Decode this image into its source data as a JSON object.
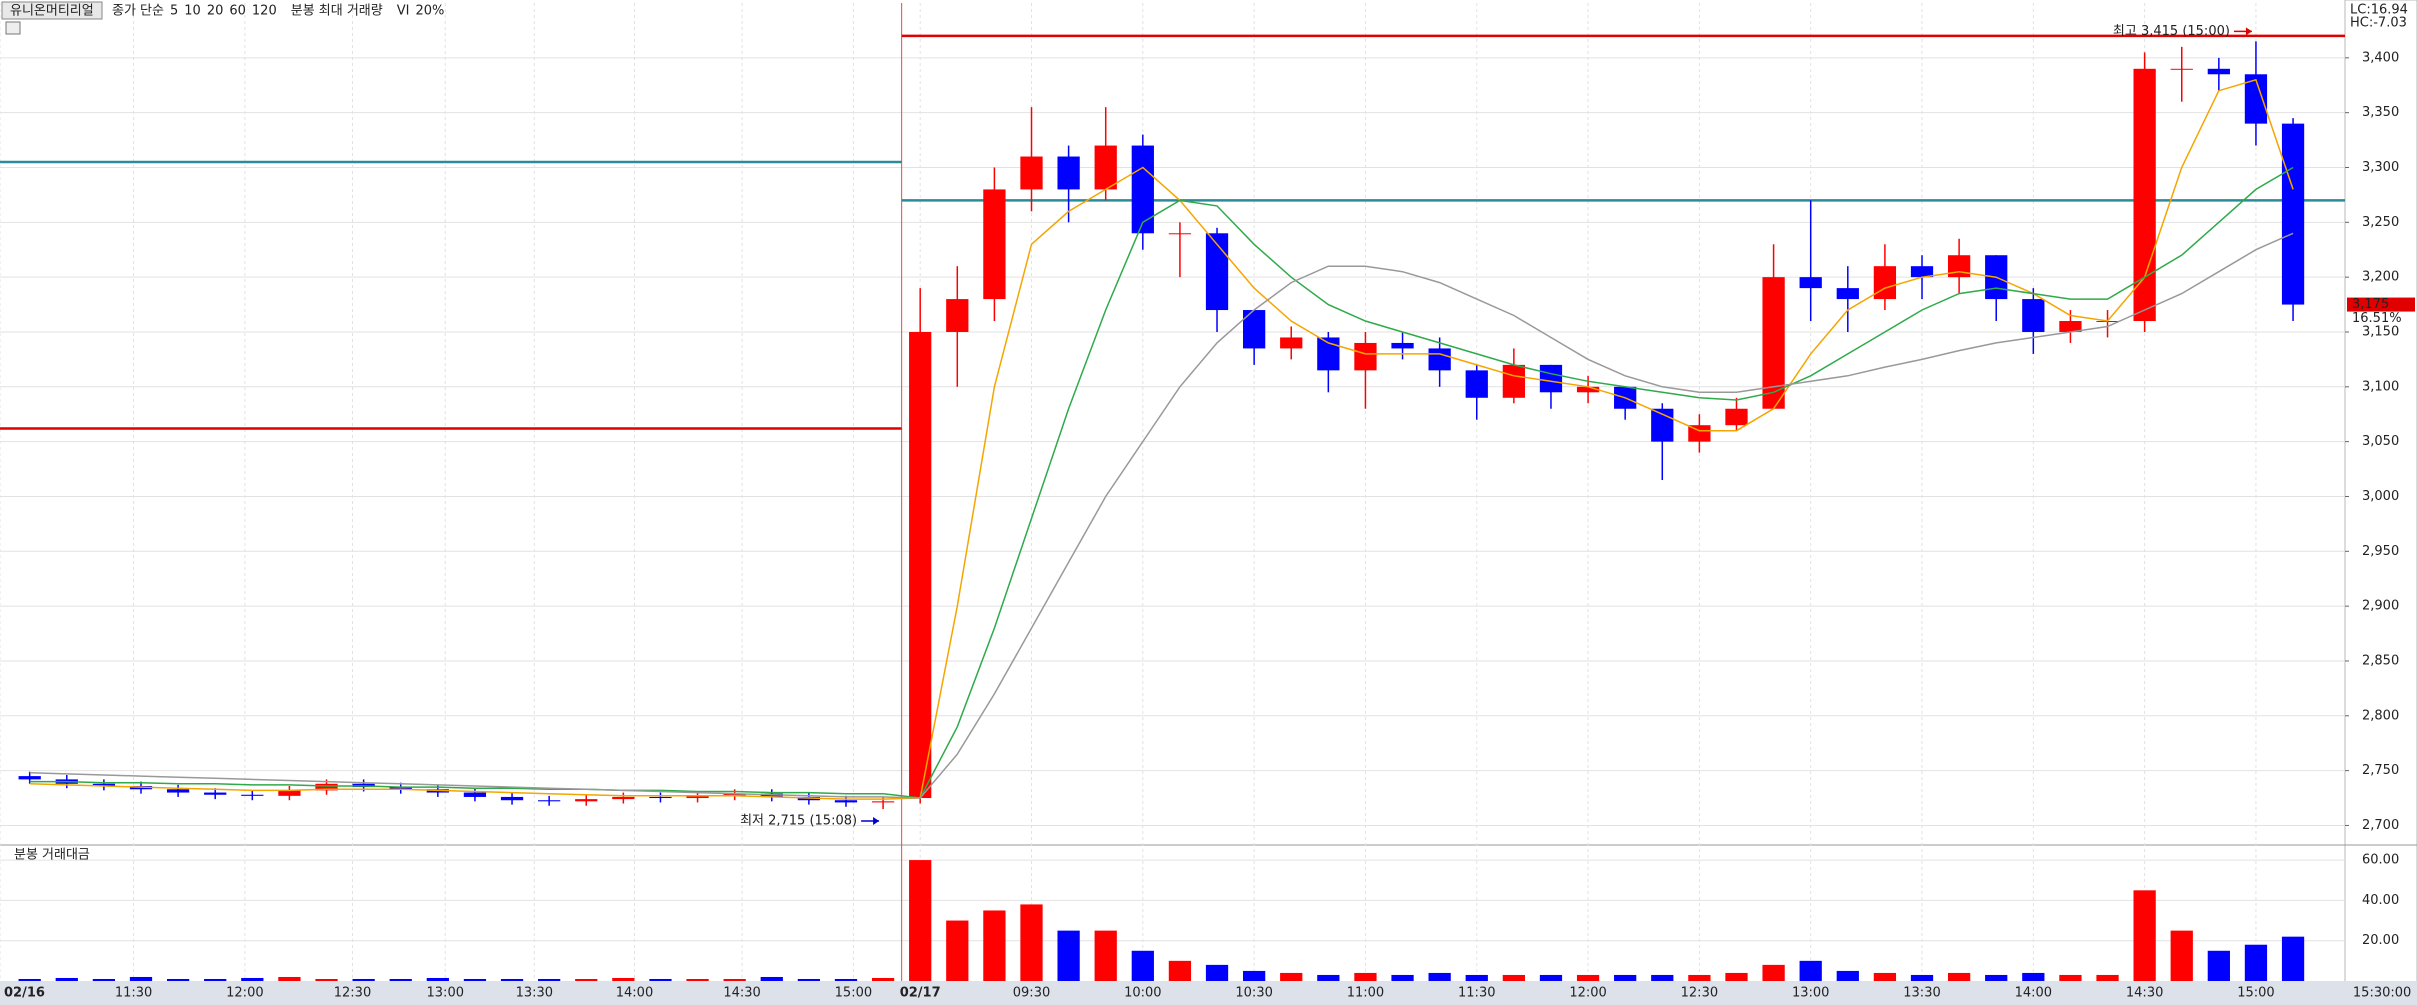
{
  "chart_data": {
    "type": "candlestick",
    "title": "유니온머티리얼",
    "ma_label": "종가 단순",
    "ma_legend": [
      {
        "name": "5",
        "color": "#d0208a"
      },
      {
        "name": "10",
        "color": "#1a2cf0"
      }
    ],
    "volume_header": "분봉 최대 거래량",
    "vi_label": "VI",
    "vi_value": "20%",
    "volume_title": "분봉 거래대금",
    "lc": "LC:16.94",
    "hc": "HC:-7.03",
    "up_color": "#ff0000",
    "down_color": "#0000ff",
    "x": [
      2,
      3,
      4,
      5,
      6,
      7,
      8,
      9,
      10,
      11,
      12,
      13,
      14,
      15,
      16,
      17,
      18,
      19,
      20,
      21,
      22,
      23,
      24,
      25,
      26,
      27,
      28,
      29,
      30,
      31,
      32,
      33,
      34,
      35,
      36,
      37,
      38,
      39,
      40,
      41,
      42,
      43,
      44,
      45,
      46,
      47,
      48,
      49,
      50,
      51,
      52,
      53,
      54,
      55,
      56,
      57,
      58,
      59,
      60,
      61,
      62,
      63
    ],
    "day": [
      1,
      1,
      1,
      1,
      1,
      1,
      1,
      1,
      1,
      1,
      1,
      1,
      1,
      1,
      1,
      1,
      1,
      1,
      1,
      1,
      1,
      1,
      1,
      1,
      2,
      2,
      2,
      2,
      2,
      2,
      2,
      2,
      2,
      2,
      2,
      2,
      2,
      2,
      2,
      2,
      2,
      2,
      2,
      2,
      2,
      2,
      2,
      2,
      2,
      2,
      2,
      2,
      2,
      2,
      2,
      2,
      2,
      2,
      2,
      2,
      2,
      2
    ],
    "open": [
      2745,
      2742,
      2738,
      2736,
      2733,
      2730,
      2728,
      2727,
      2732,
      2738,
      2735,
      2733,
      2730,
      2726,
      2723,
      2722,
      2724,
      2726,
      2725,
      2727,
      2729,
      2726,
      2723,
      2721,
      2725,
      3150,
      3180,
      3280,
      3310,
      3280,
      3320,
      3240,
      3240,
      3170,
      3135,
      3145,
      3115,
      3140,
      3135,
      3115,
      3090,
      3120,
      3095,
      3100,
      3080,
      3050,
      3065,
      3080,
      3200,
      3190,
      3180,
      3210,
      3200,
      3220,
      3180,
      3150,
      3160,
      3160,
      3390,
      3390,
      3385,
      3340
    ],
    "high": [
      2749,
      2746,
      2742,
      2740,
      2737,
      2734,
      2732,
      2736,
      2742,
      2742,
      2739,
      2737,
      2734,
      2730,
      2727,
      2728,
      2730,
      2730,
      2731,
      2733,
      2733,
      2730,
      2727,
      2726,
      3190,
      3210,
      3300,
      3355,
      3320,
      3355,
      3330,
      3250,
      3245,
      3170,
      3155,
      3150,
      3150,
      3150,
      3145,
      3120,
      3135,
      3120,
      3110,
      3100,
      3085,
      3075,
      3090,
      3230,
      3270,
      3210,
      3230,
      3220,
      3235,
      3220,
      3190,
      3170,
      3170,
      3405,
      3410,
      3400,
      3415,
      3345
    ],
    "low": [
      2738,
      2734,
      2732,
      2729,
      2726,
      2724,
      2723,
      2723,
      2728,
      2731,
      2729,
      2726,
      2722,
      2719,
      2718,
      2718,
      2720,
      2721,
      2721,
      2723,
      2722,
      2719,
      2717,
      2715,
      2720,
      3100,
      3160,
      3260,
      3250,
      3270,
      3225,
      3200,
      3150,
      3120,
      3125,
      3095,
      3080,
      3125,
      3100,
      3070,
      3085,
      3080,
      3085,
      3070,
      3015,
      3040,
      3060,
      3080,
      3160,
      3150,
      3170,
      3180,
      3185,
      3160,
      3130,
      3140,
      3145,
      3150,
      3360,
      3370,
      3320,
      3160
    ],
    "close": [
      2742,
      2738,
      2736,
      2733,
      2730,
      2728,
      2727,
      2732,
      2738,
      2735,
      2733,
      2730,
      2726,
      2723,
      2722,
      2724,
      2726,
      2725,
      2727,
      2729,
      2726,
      2723,
      2721,
      2722,
      3150,
      3180,
      3280,
      3310,
      3280,
      3320,
      3240,
      3240,
      3170,
      3135,
      3145,
      3115,
      3140,
      3135,
      3115,
      3090,
      3120,
      3095,
      3100,
      3080,
      3050,
      3065,
      3080,
      3200,
      3190,
      3180,
      3210,
      3200,
      3220,
      3180,
      3150,
      3160,
      3160,
      3390,
      3390,
      3385,
      3340,
      3175
    ],
    "volume": [
      1,
      1.5,
      1,
      2,
      1,
      1,
      1.5,
      2,
      1,
      1,
      1,
      1.5,
      1,
      1,
      1,
      1,
      1.5,
      1,
      1,
      1,
      2,
      1,
      1,
      1.5,
      60,
      30,
      35,
      38,
      25,
      25,
      15,
      10,
      8,
      5,
      4,
      3,
      4,
      3,
      4,
      3,
      3,
      3,
      3,
      3,
      3,
      3,
      4,
      8,
      10,
      5,
      4,
      3,
      4,
      3,
      4,
      3,
      3,
      45,
      25,
      15,
      18,
      22
    ],
    "series": [
      {
        "name": "20",
        "color": "#f5a500",
        "values": [
          2738,
          2737,
          2736,
          2735,
          2734,
          2733,
          2732,
          2732,
          2733,
          2733,
          2733,
          2732,
          2731,
          2730,
          2729,
          2728,
          2727,
          2727,
          2727,
          2727,
          2726,
          2725,
          2724,
          2724,
          2725,
          2900,
          3100,
          3230,
          3260,
          3280,
          3300,
          3270,
          3230,
          3190,
          3160,
          3140,
          3130,
          3130,
          3130,
          3120,
          3110,
          3105,
          3100,
          3090,
          3075,
          3060,
          3060,
          3080,
          3130,
          3170,
          3190,
          3200,
          3205,
          3200,
          3185,
          3165,
          3160,
          3200,
          3300,
          3370,
          3380,
          3280
        ]
      },
      {
        "name": "60",
        "color": "#2eaa4a",
        "values": [
          2740,
          2740,
          2739,
          2739,
          2738,
          2738,
          2737,
          2737,
          2736,
          2736,
          2735,
          2735,
          2734,
          2734,
          2733,
          2733,
          2732,
          2732,
          2731,
          2731,
          2730,
          2730,
          2729,
          2729,
          2725,
          2790,
          2880,
          2980,
          3080,
          3170,
          3250,
          3270,
          3265,
          3230,
          3200,
          3175,
          3160,
          3150,
          3140,
          3130,
          3120,
          3112,
          3105,
          3100,
          3095,
          3090,
          3088,
          3095,
          3110,
          3130,
          3150,
          3170,
          3185,
          3190,
          3185,
          3180,
          3180,
          3200,
          3220,
          3250,
          3280,
          3300
        ]
      },
      {
        "name": "120",
        "color": "#999999",
        "values": [
          2748,
          2747,
          2746,
          2745,
          2744,
          2743,
          2742,
          2741,
          2740,
          2739,
          2738,
          2737,
          2736,
          2735,
          2734,
          2733,
          2732,
          2731,
          2730,
          2729,
          2728,
          2727,
          2726,
          2726,
          2725,
          2765,
          2820,
          2880,
          2940,
          3000,
          3050,
          3100,
          3140,
          3170,
          3195,
          3210,
          3210,
          3205,
          3195,
          3180,
          3165,
          3145,
          3125,
          3110,
          3100,
          3095,
          3095,
          3100,
          3105,
          3110,
          3118,
          3125,
          3133,
          3140,
          3145,
          3150,
          3155,
          3170,
          3185,
          3205,
          3225,
          3240
        ]
      }
    ],
    "reference_lines": [
      {
        "value": 3305,
        "day": 1,
        "color": "#2a8c99"
      },
      {
        "value": 3062,
        "day": 1,
        "color": "#e00000"
      },
      {
        "value": 3420,
        "day": 2,
        "color": "#e00000"
      },
      {
        "value": 3270,
        "day": 2,
        "color": "#2a8c99"
      }
    ],
    "annotations": [
      {
        "text": "최고 3,415 (15:00)",
        "x": 62,
        "value": 3415,
        "color": "#e00000"
      },
      {
        "text": "최저 2,715 (15:08)",
        "x": 25,
        "value": 2715,
        "color": "#0000cc"
      }
    ],
    "current": {
      "value": 3175,
      "label": "3,175",
      "change": "16.51%"
    },
    "xlim": [
      1.2,
      64.4
    ],
    "xticks": [
      {
        "value": 1.2,
        "label": "02/16"
      },
      {
        "value": 4.8,
        "label": "11:30"
      },
      {
        "value": 7.8,
        "label": "12:00"
      },
      {
        "value": 10.7,
        "label": "12:30"
      },
      {
        "value": 13.2,
        "label": "13:00"
      },
      {
        "value": 15.6,
        "label": "13:30"
      },
      {
        "value": 18.3,
        "label": "14:00"
      },
      {
        "value": 21.2,
        "label": "14:30"
      },
      {
        "value": 24.2,
        "label": "15:00"
      },
      {
        "value": 26,
        "label": "02/17"
      },
      {
        "value": 29,
        "label": "09:30"
      },
      {
        "value": 32,
        "label": "10:00"
      },
      {
        "value": 35,
        "label": "10:30"
      },
      {
        "value": 38,
        "label": "11:00"
      },
      {
        "value": 41,
        "label": "11:30"
      },
      {
        "value": 44,
        "label": "12:00"
      },
      {
        "value": 47,
        "label": "12:30"
      },
      {
        "value": 50,
        "label": "13:00"
      },
      {
        "value": 53,
        "label": "13:30"
      },
      {
        "value": 56,
        "label": "14:00"
      },
      {
        "value": 59,
        "label": "14:30"
      },
      {
        "value": 62,
        "label": "15:00"
      },
      {
        "value": 65.4,
        "label": "15:30:00"
      }
    ],
    "ylim": [
      2684,
      3450
    ],
    "yticks": [
      {
        "value": 2700,
        "label": "2,700"
      },
      {
        "value": 2750,
        "label": "2,750"
      },
      {
        "value": 2800,
        "label": "2,800"
      },
      {
        "value": 2850,
        "label": "2,850"
      },
      {
        "value": 2900,
        "label": "2,900"
      },
      {
        "value": 2950,
        "label": "2,950"
      },
      {
        "value": 3000,
        "label": "3,000"
      },
      {
        "value": 3050,
        "label": "3,050"
      },
      {
        "value": 3100,
        "label": "3,100"
      },
      {
        "value": 3150,
        "label": "3,150"
      },
      {
        "value": 3200,
        "label": "3,200"
      },
      {
        "value": 3250,
        "label": "3,250"
      },
      {
        "value": 3300,
        "label": "3,300"
      },
      {
        "value": 3350,
        "label": "3,350"
      },
      {
        "value": 3400,
        "label": "3,400"
      }
    ],
    "vlim": [
      0,
      66
    ],
    "vticks": [
      {
        "value": 20,
        "label": "20.00"
      },
      {
        "value": 40,
        "label": "40.00"
      },
      {
        "value": 60,
        "label": "60.00"
      }
    ],
    "grid": true
  }
}
